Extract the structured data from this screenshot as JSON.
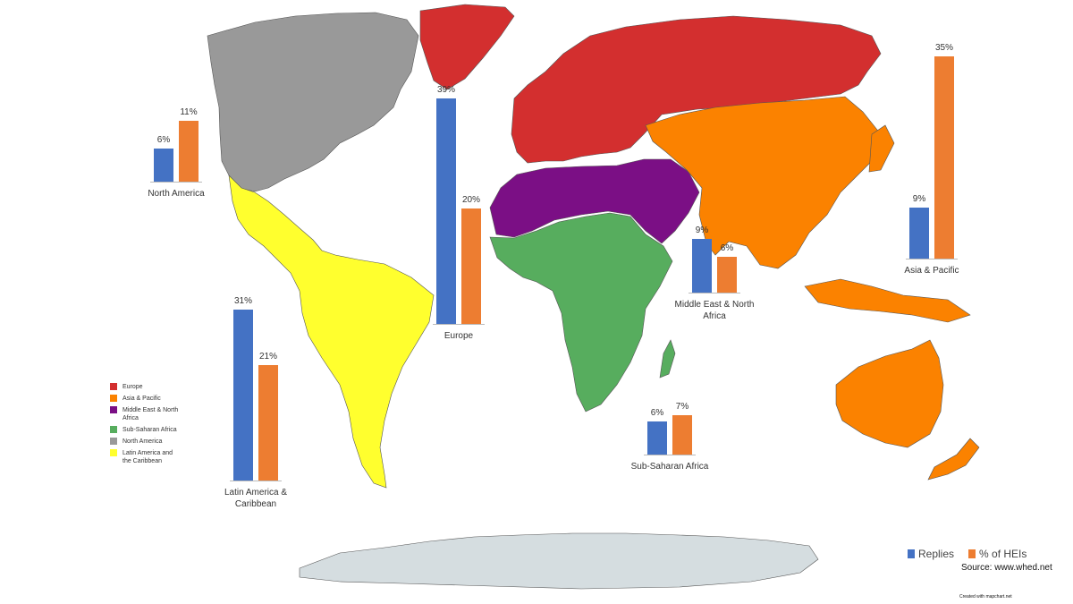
{
  "colors": {
    "europe": "#d32f2f",
    "asia_pacific": "#fb8200",
    "mena": "#7b0f85",
    "sub_saharan_africa": "#57ad5e",
    "north_america": "#999999",
    "latin_america": "#ffff2e",
    "antarctica": "#d5dde0",
    "replies": "#4472c4",
    "heis": "#ed7d31"
  },
  "legend": [
    {
      "label": "Europe",
      "color": "#d32f2f"
    },
    {
      "label": "Asia & Pacific",
      "color": "#fb8200"
    },
    {
      "label": "Middle East & North\nAfrica",
      "color": "#7b0f85"
    },
    {
      "label": "Sub-Saharan Africa",
      "color": "#57ad5e"
    },
    {
      "label": "North America",
      "color": "#999999"
    },
    {
      "label": "Latin America and\nthe Caribbean",
      "color": "#ffff2e"
    }
  ],
  "series_legend": {
    "replies": "Replies",
    "heis": "% of HEIs"
  },
  "source": "Source: www.whed.net",
  "credit": "Created with mapchart.net",
  "chart_data": {
    "type": "bar",
    "series": [
      {
        "name": "Replies",
        "values": [
          6,
          39,
          31,
          9,
          6,
          9
        ]
      },
      {
        "name": "% of HEIs",
        "values": [
          11,
          20,
          21,
          6,
          7,
          35
        ]
      }
    ],
    "categories": [
      "North America",
      "Europe",
      "Latin America & Caribbean",
      "Middle East & North Africa",
      "Sub-Saharan Africa",
      "Asia & Pacific"
    ],
    "regions": [
      {
        "id": "north_america",
        "label": "North America",
        "replies": 6,
        "heis": 11,
        "replies_text": "6%",
        "heis_text": "11%"
      },
      {
        "id": "europe",
        "label": "Europe",
        "replies": 39,
        "heis": 20,
        "replies_text": "39%",
        "heis_text": "20%"
      },
      {
        "id": "latam",
        "label": "Latin America &\nCaribbean",
        "replies": 31,
        "heis": 21,
        "replies_text": "31%",
        "heis_text": "21%"
      },
      {
        "id": "mena",
        "label": "Middle East & North\nAfrica",
        "replies": 9,
        "heis": 6,
        "replies_text": "9%",
        "heis_text": "6%"
      },
      {
        "id": "ssa",
        "label": "Sub-Saharan Africa",
        "replies": 6,
        "heis": 7,
        "replies_text": "6%",
        "heis_text": "7%"
      },
      {
        "id": "asia",
        "label": "Asia & Pacific",
        "replies": 9,
        "heis": 35,
        "replies_text": "9%",
        "heis_text": "35%"
      }
    ]
  }
}
